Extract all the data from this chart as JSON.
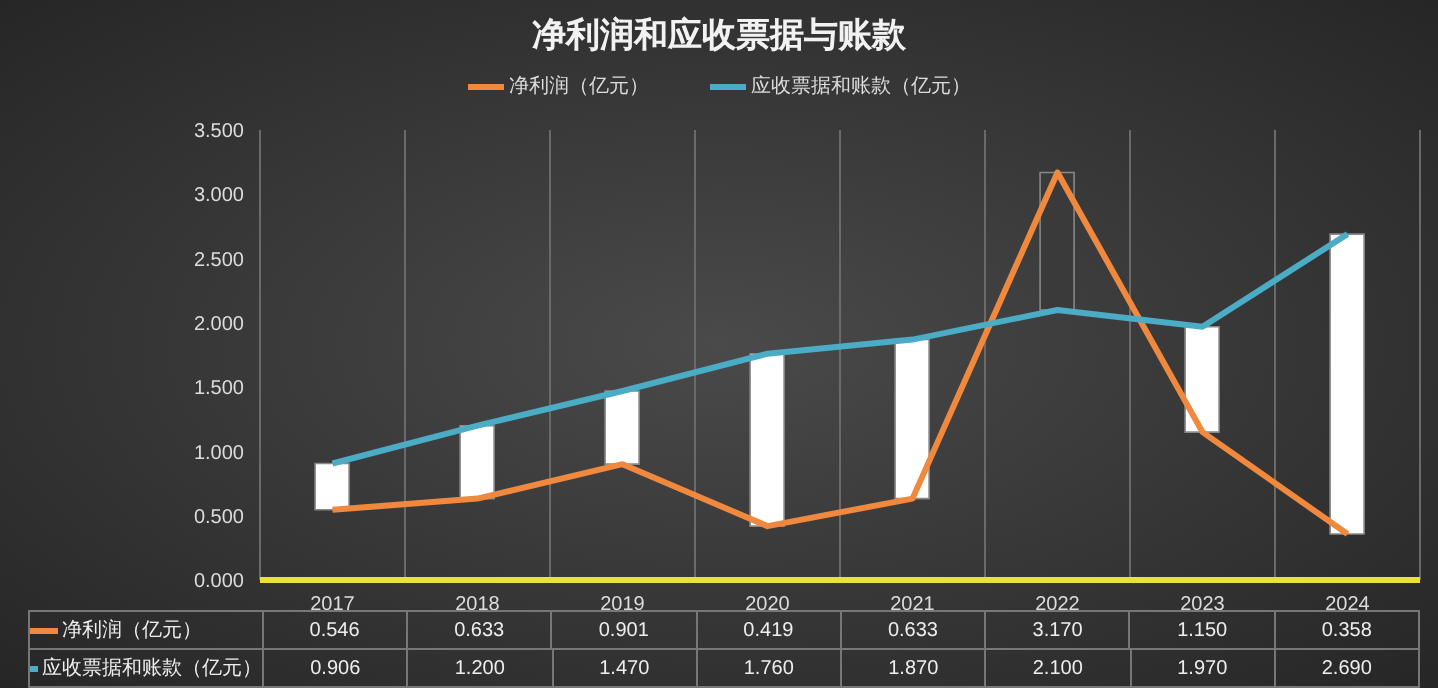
{
  "chart_data": {
    "type": "line",
    "title": "净利润和应收票据与账款",
    "categories": [
      "2017",
      "2018",
      "2019",
      "2020",
      "2021",
      "2022",
      "2023",
      "2024"
    ],
    "series": [
      {
        "type": "bar",
        "colors": [
          "#ffffff",
          "#ffffff",
          "#ffffff",
          "#ffffff",
          "#ffffff",
          "#3a3a3a",
          "#ffffff",
          "#ffffff"
        ],
        "base": [
          0.546,
          0.633,
          0.901,
          0.419,
          0.633,
          2.1,
          1.15,
          0.358
        ],
        "values": [
          0.36,
          0.567,
          0.569,
          1.341,
          1.237,
          1.07,
          0.82,
          2.332
        ]
      },
      {
        "name": "净利润（亿元）",
        "color": "#f0883e",
        "values": [
          0.546,
          0.633,
          0.901,
          0.419,
          0.633,
          3.17,
          1.15,
          0.358
        ],
        "value_labels": [
          "0.546",
          "0.633",
          "0.901",
          "0.419",
          "0.633",
          "3.170",
          "1.150",
          "0.358"
        ]
      },
      {
        "name": "应收票据和账款（亿元）",
        "color": "#4bacc6",
        "values": [
          0.906,
          1.2,
          1.47,
          1.76,
          1.87,
          2.1,
          1.97,
          2.69
        ],
        "value_labels": [
          "0.906",
          "1.200",
          "1.470",
          "1.760",
          "1.870",
          "2.100",
          "1.970",
          "2.690"
        ]
      }
    ],
    "ylim": [
      0,
      3.5
    ],
    "yticks": [
      {
        "value": 0,
        "label": "0.000"
      },
      {
        "value": 0.5,
        "label": "0.500"
      },
      {
        "value": 1,
        "label": "1.000"
      },
      {
        "value": 1.5,
        "label": "1.500"
      },
      {
        "value": 2,
        "label": "2.000"
      },
      {
        "value": 2.5,
        "label": "2.500"
      },
      {
        "value": 3,
        "label": "3.000"
      },
      {
        "value": 3.5,
        "label": "3.500"
      }
    ],
    "grid": "x",
    "legend": "top",
    "marker": "none",
    "line_style": "solid"
  }
}
